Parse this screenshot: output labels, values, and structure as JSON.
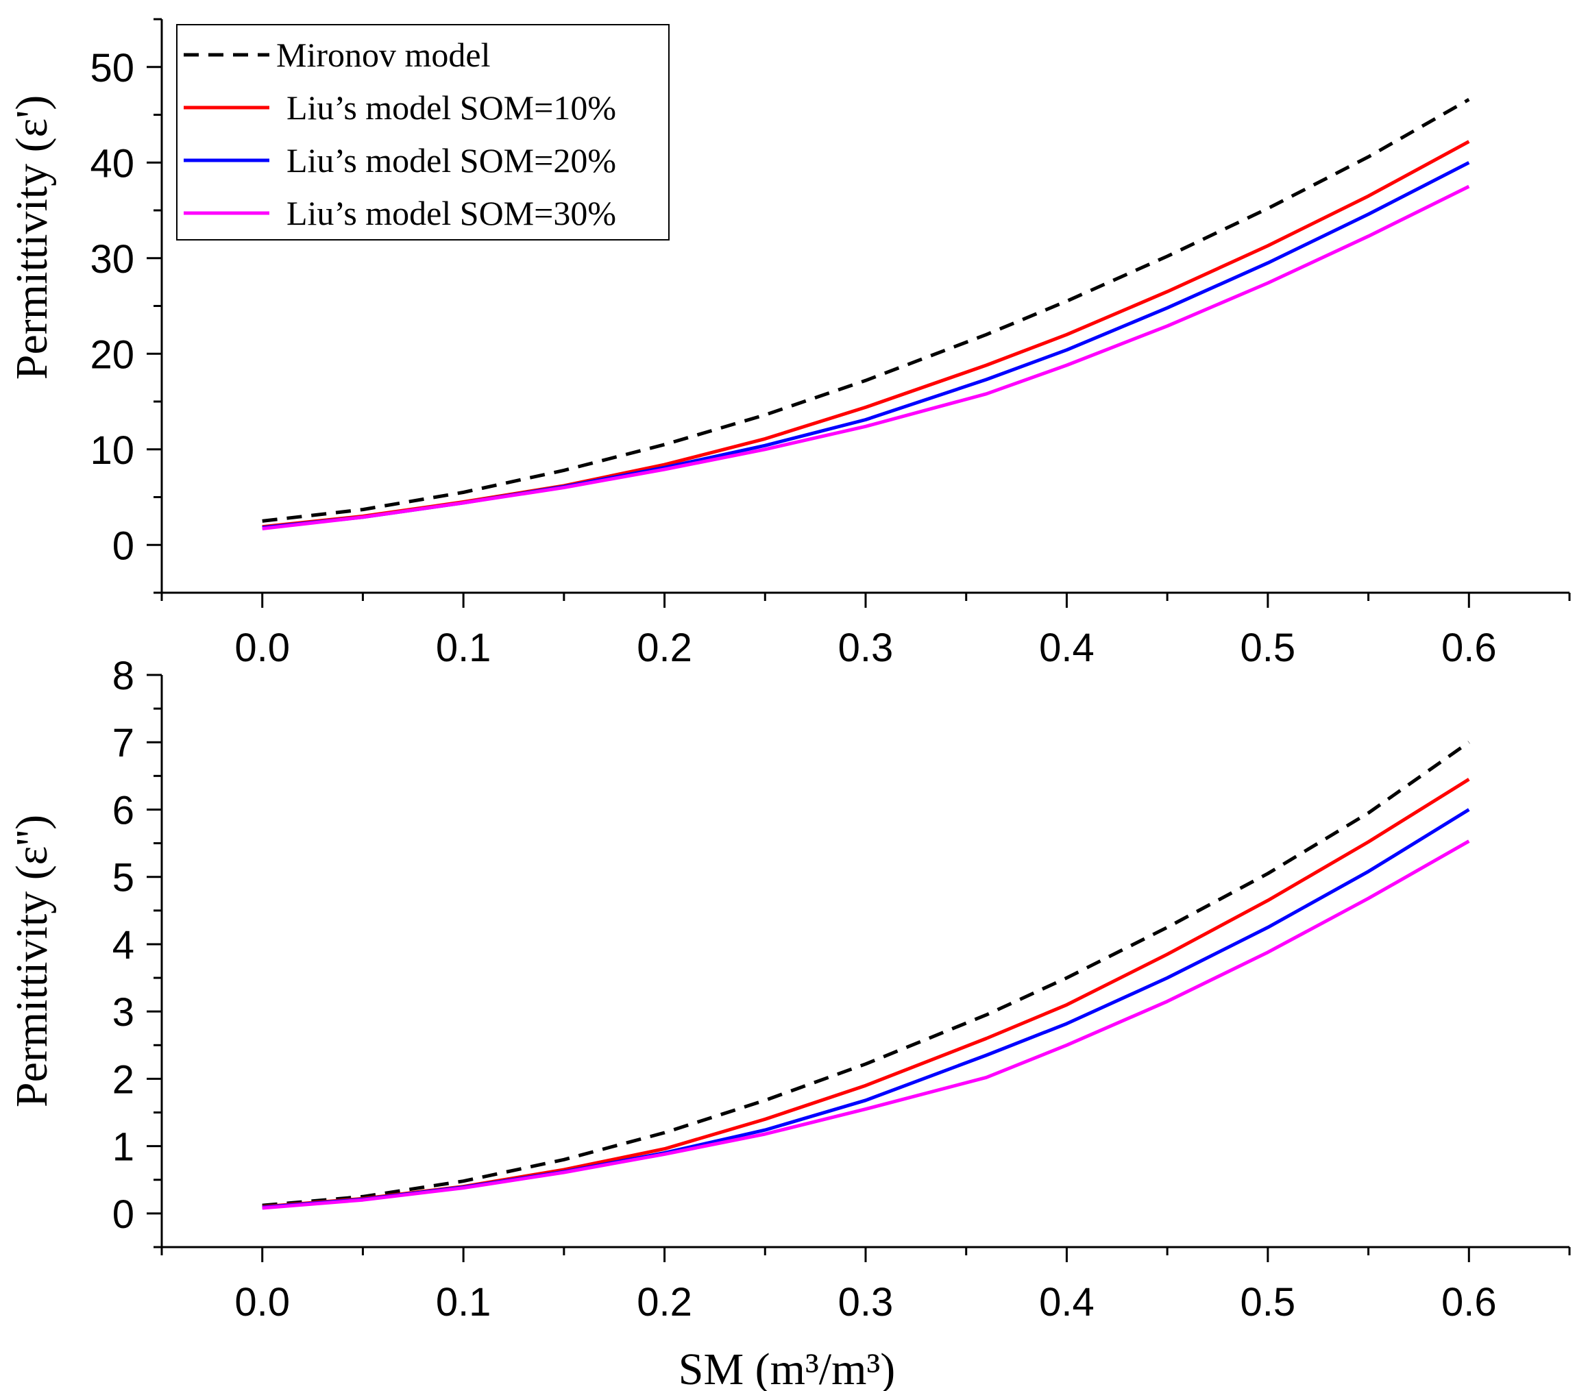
{
  "chart_data": [
    {
      "type": "line",
      "panel": "top",
      "ylabel": "Permittivity (ε')",
      "xlabel": "",
      "xlim": [
        -0.05,
        0.65
      ],
      "ylim": [
        -5,
        55
      ],
      "xticks": [
        "0.0",
        "0.1",
        "0.2",
        "0.3",
        "0.4",
        "0.5",
        "0.6"
      ],
      "xtick_values": [
        0.0,
        0.1,
        0.2,
        0.3,
        0.4,
        0.5,
        0.6
      ],
      "yticks": [
        "0",
        "10",
        "20",
        "30",
        "40",
        "50"
      ],
      "ytick_values": [
        0,
        10,
        20,
        30,
        40,
        50
      ],
      "legend_position": "top-left",
      "x": [
        0.0,
        0.05,
        0.1,
        0.15,
        0.2,
        0.25,
        0.3,
        0.36,
        0.4,
        0.45,
        0.5,
        0.55,
        0.6
      ],
      "series": [
        {
          "name": "Mironov model",
          "color": "#000000",
          "dash": true,
          "values": [
            2.5,
            3.7,
            5.5,
            7.8,
            10.5,
            13.6,
            17.2,
            22.0,
            25.5,
            30.2,
            35.2,
            40.6,
            46.6
          ]
        },
        {
          "name": "Liu’s model SOM=10%",
          "color": "#ff0000",
          "dash": false,
          "values": [
            1.9,
            3.0,
            4.5,
            6.2,
            8.4,
            11.1,
            14.4,
            18.8,
            22.0,
            26.5,
            31.3,
            36.5,
            42.2
          ]
        },
        {
          "name": "Liu’s model SOM=20%",
          "color": "#0000ff",
          "dash": false,
          "values": [
            1.8,
            2.9,
            4.4,
            6.1,
            8.1,
            10.4,
            13.1,
            17.3,
            20.4,
            24.8,
            29.5,
            34.6,
            40.0
          ]
        },
        {
          "name": "Liu’s model SOM=30%",
          "color": "#ff00ff",
          "dash": false,
          "values": [
            1.7,
            2.9,
            4.4,
            6.0,
            7.9,
            10.0,
            12.4,
            15.8,
            18.8,
            22.9,
            27.4,
            32.3,
            37.5
          ]
        }
      ]
    },
    {
      "type": "line",
      "panel": "bottom",
      "ylabel": "Permittivity (ε'')",
      "xlabel": "SM (m³/m³)",
      "xlim": [
        -0.05,
        0.65
      ],
      "ylim": [
        -0.5,
        8
      ],
      "xticks": [
        "0.0",
        "0.1",
        "0.2",
        "0.3",
        "0.4",
        "0.5",
        "0.6"
      ],
      "xtick_values": [
        0.0,
        0.1,
        0.2,
        0.3,
        0.4,
        0.5,
        0.6
      ],
      "yticks": [
        "0",
        "1",
        "2",
        "3",
        "4",
        "5",
        "6",
        "7",
        "8"
      ],
      "ytick_values": [
        0,
        1,
        2,
        3,
        4,
        5,
        6,
        7,
        8
      ],
      "x": [
        0.0,
        0.05,
        0.1,
        0.15,
        0.2,
        0.25,
        0.3,
        0.36,
        0.4,
        0.45,
        0.5,
        0.55,
        0.6
      ],
      "series": [
        {
          "name": "Mironov model",
          "color": "#000000",
          "dash": true,
          "values": [
            0.12,
            0.25,
            0.48,
            0.8,
            1.2,
            1.68,
            2.22,
            2.95,
            3.5,
            4.25,
            5.05,
            5.95,
            7.0
          ]
        },
        {
          "name": "Liu’s model SOM=10%",
          "color": "#ff0000",
          "dash": false,
          "values": [
            0.1,
            0.22,
            0.4,
            0.65,
            0.96,
            1.4,
            1.9,
            2.6,
            3.1,
            3.85,
            4.65,
            5.52,
            6.45
          ]
        },
        {
          "name": "Liu’s model SOM=20%",
          "color": "#0000ff",
          "dash": false,
          "values": [
            0.09,
            0.21,
            0.39,
            0.62,
            0.9,
            1.24,
            1.68,
            2.35,
            2.82,
            3.5,
            4.25,
            5.08,
            6.0
          ]
        },
        {
          "name": "Liu’s model SOM=30%",
          "color": "#ff00ff",
          "dash": false,
          "values": [
            0.08,
            0.2,
            0.38,
            0.61,
            0.88,
            1.18,
            1.55,
            2.02,
            2.5,
            3.15,
            3.88,
            4.68,
            5.53
          ]
        }
      ]
    }
  ]
}
